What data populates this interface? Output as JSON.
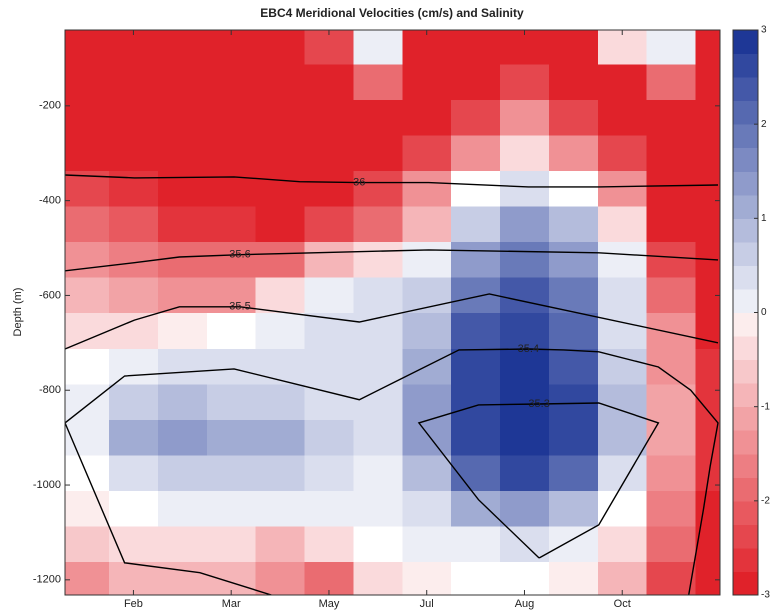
{
  "chart_data": {
    "type": "contour",
    "title": "EBC4 Meridional Velocities (cm/s) and Salinity",
    "ylabel": "Depth (m)",
    "xlim": [
      0.3,
      7.0
    ],
    "ylim": [
      -1232,
      -40
    ],
    "xticks": [
      {
        "value": 1,
        "label": "Feb"
      },
      {
        "value": 2,
        "label": "Mar"
      },
      {
        "value": 3,
        "label": "May"
      },
      {
        "value": 4,
        "label": "Jul"
      },
      {
        "value": 5,
        "label": "Aug"
      },
      {
        "value": 6,
        "label": "Oct"
      }
    ],
    "yticks": [
      -200,
      -400,
      -600,
      -800,
      -1000,
      -1200
    ],
    "clim": [
      -3,
      3
    ],
    "cticks": [
      -3,
      -2,
      -1,
      0,
      1,
      2,
      3
    ],
    "colors": {
      "low": "#e0222a",
      "mid": "#ffffff",
      "high": "#1e3796",
      "contour": "#000000"
    },
    "x": [
      0.5,
      1,
      1.5,
      2,
      2.5,
      3,
      3.5,
      4,
      4.5,
      5,
      5.5,
      6,
      6.5,
      7
    ],
    "y": [
      -75,
      -150,
      -225,
      -300,
      -375,
      -450,
      -525,
      -600,
      -675,
      -750,
      -825,
      -900,
      -975,
      -1050,
      -1125,
      -1200
    ],
    "z": [
      [
        -3,
        -3,
        -3,
        -3,
        -3,
        -2.5,
        0.3,
        -3,
        -3,
        -3,
        -3,
        -0.5,
        0.3,
        -3
      ],
      [
        -3,
        -3,
        -3,
        -3,
        -3,
        -3,
        -2,
        -3,
        -3,
        -2.5,
        -3,
        -3,
        -2,
        -3
      ],
      [
        -3,
        -3,
        -3,
        -3,
        -3,
        -3,
        -3,
        -3,
        -2.5,
        -1.5,
        -2.5,
        -3,
        -3,
        -3
      ],
      [
        -3,
        -3,
        -3,
        -3,
        -3,
        -3,
        -3,
        -2.5,
        -1.5,
        -0.5,
        -1.5,
        -2.5,
        -3,
        -3
      ],
      [
        -2.5,
        -2.7,
        -3,
        -3,
        -3,
        -3,
        -2.5,
        -1.5,
        0,
        0.5,
        0,
        -1.5,
        -3,
        -3
      ],
      [
        -2,
        -2.3,
        -2.7,
        -2.7,
        -3,
        -2.5,
        -2,
        -1,
        0.8,
        1.5,
        1,
        -0.5,
        -3,
        -3
      ],
      [
        -1.5,
        -1.8,
        -2,
        -2,
        -2,
        -1,
        -0.5,
        0.3,
        1.5,
        2,
        1.5,
        0.3,
        -2.5,
        -3
      ],
      [
        -1,
        -1.2,
        -1.5,
        -1.5,
        -0.5,
        0.3,
        0.5,
        0.8,
        2,
        2.5,
        2,
        0.5,
        -2,
        -3
      ],
      [
        -0.5,
        -0.5,
        -0.3,
        0,
        0.3,
        0.5,
        0.5,
        1,
        2.5,
        2.8,
        2.3,
        0.5,
        -1.5,
        -3
      ],
      [
        0,
        0.3,
        0.5,
        0.5,
        0.5,
        0.5,
        0.5,
        1.2,
        2.7,
        3,
        2.5,
        0.8,
        -1.5,
        -2.8
      ],
      [
        0.3,
        0.8,
        1,
        0.8,
        0.8,
        0.5,
        0.5,
        1.5,
        2.8,
        3,
        2.7,
        1,
        -1.3,
        -2.8
      ],
      [
        0.3,
        1.2,
        1.5,
        1.3,
        1.3,
        0.8,
        0.5,
        1.5,
        2.8,
        3,
        2.7,
        1,
        -1.3,
        -2.8
      ],
      [
        0,
        0.5,
        0.8,
        0.8,
        0.7,
        0.5,
        0.3,
        1,
        2.3,
        2.7,
        2.2,
        0.5,
        -1.5,
        -2.8
      ],
      [
        -0.3,
        0,
        0.3,
        0.3,
        0.3,
        0.3,
        0.2,
        0.5,
        1.2,
        1.5,
        1,
        0,
        -1.8,
        -3
      ],
      [
        -0.8,
        -0.5,
        -0.5,
        -0.5,
        -1,
        -0.5,
        0,
        0.2,
        0.3,
        0.5,
        0.2,
        -0.5,
        -2,
        -3
      ],
      [
        -1.5,
        -1,
        -1,
        -1,
        -1.5,
        -2,
        -0.5,
        -0.3,
        0,
        0,
        -0.3,
        -1,
        -2.5,
        -3
      ]
    ],
    "contours": [
      {
        "level": 36,
        "x": [
          0.3,
          1.01,
          2.03,
          2.7,
          3.31,
          4.02,
          5.04,
          5.76,
          6.98
        ],
        "y": [
          -346,
          -352,
          -350,
          -360,
          -362,
          -362,
          -371,
          -371,
          -367
        ]
      },
      {
        "level": 35.6,
        "x": [
          0.3,
          1.01,
          1.47,
          2.09,
          4.02,
          5.76,
          6.98
        ],
        "y": [
          -548,
          -531,
          -519,
          -514,
          -504,
          -510,
          -525
        ]
      },
      {
        "level": 35.5,
        "x": [
          0.3,
          1.01,
          1.47,
          2.09,
          3.31,
          4.64,
          6.98
        ],
        "y": [
          -713,
          -652,
          -624,
          -624,
          -656,
          -597,
          -700
        ]
      },
      {
        "level": 35.4,
        "x": [
          2.41,
          1.68,
          0.91,
          0.3,
          0.91,
          2.03,
          3.31,
          4.33,
          5.04,
          5.4,
          5.76,
          6.37,
          6.7,
          6.98,
          6.9,
          6.83,
          6.68
        ],
        "y": [
          -1232,
          -1185,
          -1164,
          -869,
          -770,
          -755,
          -820,
          -715,
          -713,
          -715,
          -719,
          -751,
          -800,
          -869,
          -960,
          -1052,
          -1232
        ]
      },
      {
        "level": 35.3,
        "x": [
          5.15,
          5.76,
          6.37,
          5.76,
          5.15,
          4.53,
          3.92,
          4.53,
          5.15
        ],
        "y": [
          -1154,
          -1084,
          -869,
          -827,
          -829,
          -831,
          -869,
          -1031,
          -1154
        ]
      }
    ]
  }
}
